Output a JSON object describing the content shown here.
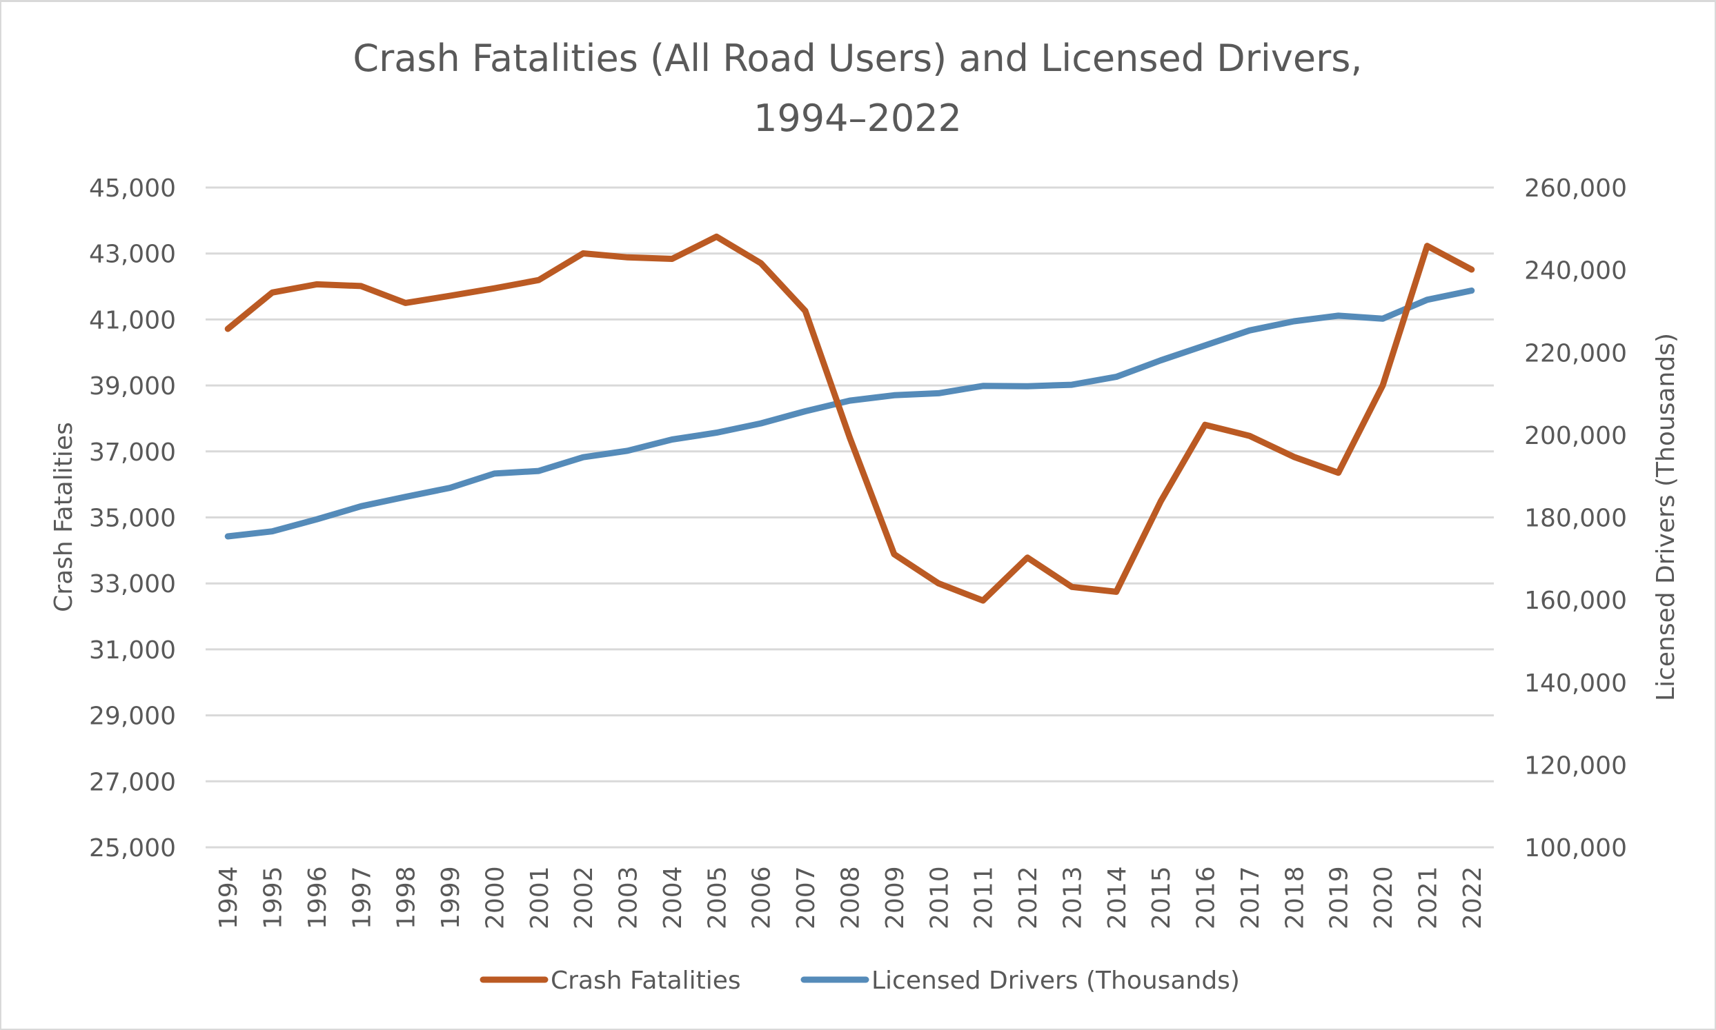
{
  "chart_data": {
    "type": "line",
    "title": "Crash Fatalities (All Road Users) and Licensed Drivers,",
    "subtitle": "1994–2022",
    "x": [
      "1994",
      "1995",
      "1996",
      "1997",
      "1998",
      "1999",
      "2000",
      "2001",
      "2002",
      "2003",
      "2004",
      "2005",
      "2006",
      "2007",
      "2008",
      "2009",
      "2010",
      "2011",
      "2012",
      "2013",
      "2014",
      "2015",
      "2016",
      "2017",
      "2018",
      "2019",
      "2020",
      "2021",
      "2022"
    ],
    "xlabel": "",
    "ylabel": "Crash Fatalities",
    "y2label": "Licensed Drivers (Thousands)",
    "ylim": [
      25000,
      45000
    ],
    "y_ticks": [
      25000,
      27000,
      29000,
      31000,
      33000,
      35000,
      37000,
      39000,
      41000,
      43000,
      45000
    ],
    "y_tick_labels": [
      "25,000",
      "27,000",
      "29,000",
      "31,000",
      "33,000",
      "35,000",
      "37,000",
      "39,000",
      "41,000",
      "43,000",
      "45,000"
    ],
    "y2lim": [
      100000,
      260000
    ],
    "y2_ticks": [
      100000,
      120000,
      140000,
      160000,
      180000,
      200000,
      220000,
      240000,
      260000
    ],
    "y2_tick_labels": [
      "100,000",
      "120,000",
      "140,000",
      "160,000",
      "180,000",
      "200,000",
      "220,000",
      "240,000",
      "260,000"
    ],
    "grid": true,
    "legend_position": "bottom",
    "series": [
      {
        "name": "Crash Fatalities",
        "axis": "left",
        "color": "#bb5a23",
        "values": [
          40716,
          41817,
          42065,
          42013,
          41501,
          41717,
          41945,
          42196,
          43005,
          42884,
          42836,
          43510,
          42708,
          41259,
          37423,
          33883,
          32999,
          32479,
          33782,
          32893,
          32744,
          35484,
          37806,
          37473,
          36835,
          36355,
          39007,
          43230,
          42514
        ]
      },
      {
        "name": "Licensed Drivers (Thousands)",
        "axis": "right",
        "color": "#558bb9",
        "values": [
          175403,
          176628,
          179539,
          182709,
          184980,
          187170,
          190625,
          191276,
          194602,
          196166,
          198889,
          200549,
          202810,
          205742,
          208321,
          209618,
          210115,
          211875,
          211815,
          212160,
          214092,
          218084,
          221712,
          225347,
          227558,
          228916,
          228196,
          232782,
          235000
        ]
      }
    ]
  }
}
